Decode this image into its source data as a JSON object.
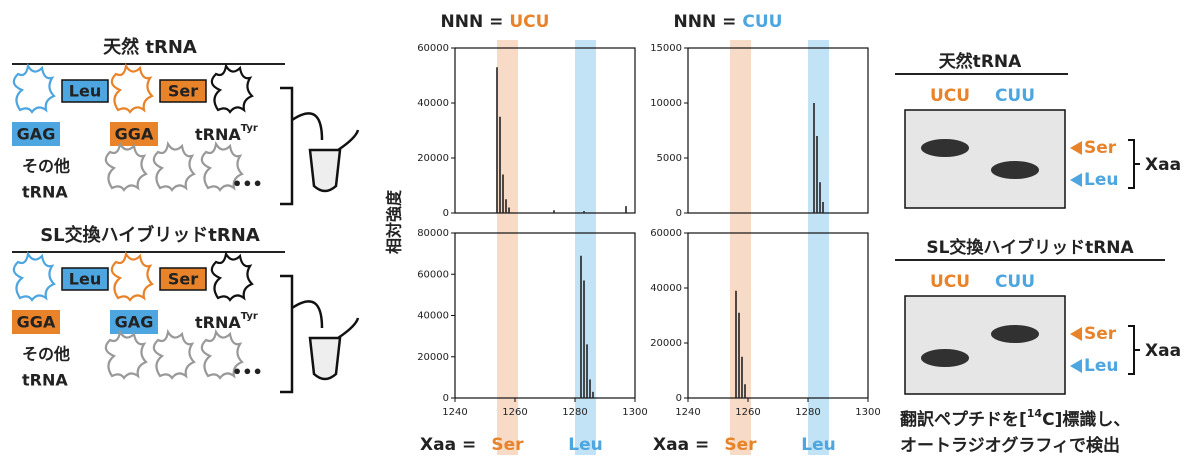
{
  "left_panel": [
    {
      "title": "天然 tRNA",
      "tags": [
        "Leu",
        "Ser"
      ],
      "anticodons": [
        "GAG",
        "GGA"
      ],
      "tyr": "tRNA",
      "tyr_sup": "Tyr",
      "others": [
        "その他",
        "tRNA"
      ],
      "dots": "•••"
    },
    {
      "title": "SL交換ハイブリッドtRNA",
      "tags": [
        "Leu",
        "Ser"
      ],
      "anticodons": [
        "GGA",
        "GAG"
      ],
      "tyr": "tRNA",
      "tyr_sup": "Tyr",
      "others": [
        "その他",
        "tRNA"
      ],
      "dots": "•••"
    }
  ],
  "y_axis_label": "相対強度",
  "chart_data": [
    {
      "type": "spectrum",
      "title": "NNN =",
      "title_highlight": "UCU",
      "title_color": "#e8832a",
      "xlim": [
        1240,
        1300
      ],
      "ylim": [
        0,
        60000
      ],
      "yticks": [
        0,
        20000,
        40000,
        60000
      ],
      "x": [
        1254,
        1255,
        1256,
        1257,
        1258,
        1273,
        1283,
        1297
      ],
      "values": [
        53000,
        35000,
        14000,
        5000,
        2000,
        1000,
        700,
        2500
      ],
      "color": "#222222"
    },
    {
      "type": "spectrum",
      "title": "NNN =",
      "title_highlight": "CUU",
      "title_color": "#4da6df",
      "xlim": [
        1240,
        1300
      ],
      "ylim": [
        0,
        15000
      ],
      "yticks": [
        0,
        5000,
        10000,
        15000
      ],
      "x": [
        1282,
        1283,
        1284,
        1285
      ],
      "values": [
        10000,
        7000,
        2800,
        1000
      ],
      "color": "#222222"
    },
    {
      "type": "spectrum",
      "xlim": [
        1240,
        1300
      ],
      "ylim": [
        0,
        80000
      ],
      "yticks": [
        0,
        20000,
        40000,
        60000,
        80000
      ],
      "xticks": [
        1240,
        1260,
        1280,
        1300
      ],
      "x": [
        1282,
        1283,
        1284,
        1285,
        1286
      ],
      "values": [
        69000,
        57000,
        26000,
        9000,
        3000
      ],
      "color": "#222222"
    },
    {
      "type": "spectrum",
      "xlim": [
        1240,
        1300
      ],
      "ylim": [
        0,
        60000
      ],
      "yticks": [
        0,
        20000,
        40000,
        60000
      ],
      "xticks": [
        1240,
        1260,
        1280,
        1300
      ],
      "x": [
        1256,
        1257,
        1258,
        1259
      ],
      "values": [
        39000,
        31000,
        15000,
        5000
      ],
      "color": "#222222"
    }
  ],
  "bands": [
    {
      "range": [
        1254,
        1261
      ],
      "color": "rgba(240,175,130,0.45)"
    },
    {
      "range": [
        1280,
        1287
      ],
      "color": "rgba(120,190,235,0.45)"
    }
  ],
  "x_label": {
    "prefix": "Xaa =",
    "ser": "Ser",
    "leu": "Leu"
  },
  "gels": [
    {
      "title": "天然tRNA",
      "lanes": [
        "UCU",
        "CUU"
      ],
      "markers": [
        "Ser",
        "Leu"
      ],
      "bracket": "Xaa"
    },
    {
      "title": "SL交換ハイブリッドtRNA",
      "lanes": [
        "UCU",
        "CUU"
      ],
      "markers": [
        "Ser",
        "Leu"
      ],
      "bracket": "Xaa"
    }
  ],
  "caption": {
    "line1": [
      "翻訳ペプチドを[",
      "14",
      "C]標識し、"
    ],
    "line2": "オートラジオグラフィで検出"
  }
}
